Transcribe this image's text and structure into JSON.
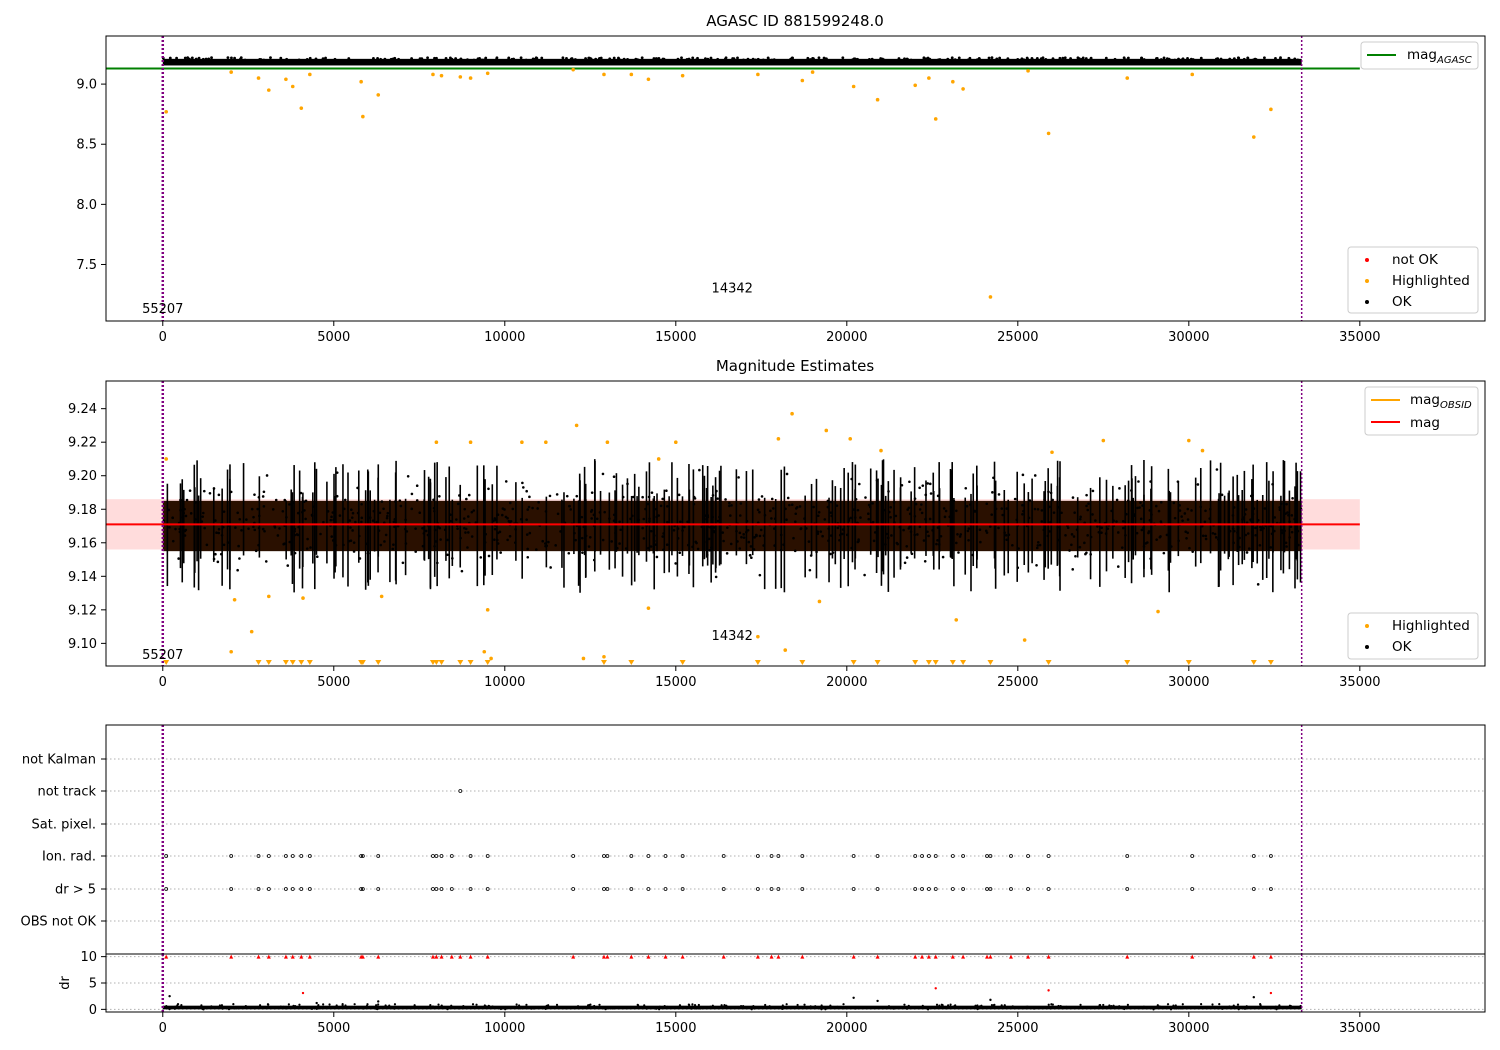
{
  "figure": {
    "background": "#ffffff"
  },
  "colors": {
    "ok": "#000000",
    "highlighted": "#ffa500",
    "not_ok": "#ff0000",
    "mag_agasc": "#008000",
    "mag_line": "#ff0000",
    "mag_band": "#ffc0c0",
    "dense_band": "#2a1000",
    "vline": "#800080"
  },
  "chart_data": [
    {
      "type": "scatter",
      "title": "AGASC ID 881599248.0",
      "xlim": [
        -1660,
        38660
      ],
      "ylim": [
        7.03,
        9.4
      ],
      "x_ticks": [
        0,
        5000,
        10000,
        15000,
        20000,
        25000,
        30000,
        35000
      ],
      "y_ticks": [
        7.5,
        8.0,
        8.5,
        9.0
      ],
      "y_tick_labels": [
        "7.5",
        "8.0",
        "8.5",
        "9.0"
      ],
      "x_tick_labels": [
        "0",
        "5000",
        "10000",
        "15000",
        "20000",
        "25000",
        "30000",
        "35000"
      ],
      "ok_band": {
        "x": [
          0,
          33300
        ],
        "y": [
          9.155,
          9.21
        ],
        "center": 9.18
      },
      "mag_agasc": 9.13,
      "vlines": [
        0,
        33300
      ],
      "annotations": [
        {
          "text": "55207",
          "x": 0,
          "y": 7.13
        },
        {
          "text": "14342",
          "x": 16650,
          "y": 7.3
        }
      ],
      "highlighted": [
        [
          100,
          8.77
        ],
        [
          2000,
          9.1
        ],
        [
          2800,
          9.05
        ],
        [
          3100,
          8.95
        ],
        [
          3600,
          9.04
        ],
        [
          3800,
          8.98
        ],
        [
          4050,
          8.8
        ],
        [
          4300,
          9.08
        ],
        [
          5800,
          9.02
        ],
        [
          5850,
          8.73
        ],
        [
          6300,
          8.91
        ],
        [
          7900,
          9.08
        ],
        [
          8150,
          9.07
        ],
        [
          8700,
          9.06
        ],
        [
          9000,
          9.05
        ],
        [
          9500,
          9.09
        ],
        [
          12000,
          9.12
        ],
        [
          12900,
          9.08
        ],
        [
          13700,
          9.08
        ],
        [
          14200,
          9.04
        ],
        [
          15200,
          9.07
        ],
        [
          17400,
          9.08
        ],
        [
          18700,
          9.03
        ],
        [
          19000,
          9.1
        ],
        [
          20200,
          8.98
        ],
        [
          20900,
          8.87
        ],
        [
          22000,
          8.99
        ],
        [
          22400,
          9.05
        ],
        [
          22600,
          8.71
        ],
        [
          23100,
          9.02
        ],
        [
          23400,
          8.96
        ],
        [
          24200,
          7.23
        ],
        [
          25300,
          9.11
        ],
        [
          25900,
          8.59
        ],
        [
          28200,
          9.05
        ],
        [
          30100,
          9.08
        ],
        [
          31900,
          8.56
        ],
        [
          32400,
          8.79
        ]
      ],
      "legends": [
        {
          "position": "top-right",
          "entries": [
            {
              "label": "mag",
              "sub": "AGASC",
              "style": "line",
              "color_key": "mag_agasc"
            }
          ]
        },
        {
          "position": "bottom-right",
          "entries": [
            {
              "label": "not OK",
              "style": "dot",
              "color_key": "not_ok"
            },
            {
              "label": "Highlighted",
              "style": "dot",
              "color_key": "highlighted"
            },
            {
              "label": "OK",
              "style": "dot",
              "color_key": "ok"
            }
          ]
        }
      ]
    },
    {
      "type": "scatter",
      "title": "Magnitude Estimates",
      "xlim": [
        -1660,
        38660
      ],
      "ylim": [
        9.0865,
        9.2565
      ],
      "x_ticks": [
        0,
        5000,
        10000,
        15000,
        20000,
        25000,
        30000,
        35000
      ],
      "x_tick_labels": [
        "0",
        "5000",
        "10000",
        "15000",
        "20000",
        "25000",
        "30000",
        "35000"
      ],
      "y_ticks": [
        9.1,
        9.12,
        9.14,
        9.16,
        9.18,
        9.2,
        9.22,
        9.24
      ],
      "y_tick_labels": [
        "9.10",
        "9.12",
        "9.14",
        "9.16",
        "9.18",
        "9.20",
        "9.22",
        "9.24"
      ],
      "mag": 9.171,
      "mag_band": [
        9.156,
        9.186
      ],
      "dense_band": [
        9.155,
        9.185
      ],
      "ok_spread": [
        9.13,
        9.21
      ],
      "vlines": [
        0,
        33300
      ],
      "annotations": [
        {
          "text": "55207",
          "x": 0,
          "y": 9.093
        },
        {
          "text": "14342",
          "x": 16650,
          "y": 9.1045
        }
      ],
      "highlighted": [
        [
          100,
          9.21
        ],
        [
          2000,
          9.095
        ],
        [
          2100,
          9.126
        ],
        [
          2600,
          9.107
        ],
        [
          3100,
          9.128
        ],
        [
          4100,
          9.127
        ],
        [
          6400,
          9.128
        ],
        [
          8000,
          9.22
        ],
        [
          9000,
          9.22
        ],
        [
          9400,
          9.095
        ],
        [
          9600,
          9.091
        ],
        [
          9500,
          9.12
        ],
        [
          10500,
          9.22
        ],
        [
          11200,
          9.22
        ],
        [
          12100,
          9.23
        ],
        [
          12300,
          9.091
        ],
        [
          12900,
          9.092
        ],
        [
          13000,
          9.22
        ],
        [
          14200,
          9.121
        ],
        [
          14500,
          9.21
        ],
        [
          15000,
          9.22
        ],
        [
          17400,
          9.104
        ],
        [
          18000,
          9.222
        ],
        [
          18400,
          9.237
        ],
        [
          18200,
          9.096
        ],
        [
          19200,
          9.125
        ],
        [
          19400,
          9.227
        ],
        [
          20100,
          9.222
        ],
        [
          21000,
          9.215
        ],
        [
          23200,
          9.114
        ],
        [
          25200,
          9.102
        ],
        [
          26000,
          9.214
        ],
        [
          27500,
          9.221
        ],
        [
          29100,
          9.119
        ],
        [
          30000,
          9.221
        ],
        [
          30400,
          9.215
        ]
      ],
      "highlighted_below": [
        100,
        2800,
        3100,
        3600,
        3800,
        4050,
        4300,
        5800,
        5850,
        6300,
        7900,
        8000,
        8150,
        8700,
        9000,
        9500,
        12900,
        13700,
        15200,
        17400,
        18700,
        20200,
        20900,
        22000,
        22400,
        22600,
        23100,
        23400,
        24200,
        25900,
        28200,
        30000,
        31900,
        32400
      ],
      "legends": [
        {
          "position": "top-right",
          "entries": [
            {
              "label": "mag",
              "sub": "OBSID",
              "style": "line",
              "color_key": "highlighted"
            },
            {
              "label": "mag",
              "style": "line",
              "color_key": "mag_line"
            }
          ]
        },
        {
          "position": "bottom-right",
          "entries": [
            {
              "label": "Highlighted",
              "style": "dot",
              "color_key": "highlighted"
            },
            {
              "label": "OK",
              "style": "dot",
              "color_key": "ok"
            }
          ]
        }
      ]
    },
    {
      "type": "scatter",
      "xlim": [
        -1660,
        38660
      ],
      "categories": [
        "not Kalman",
        "not track",
        "Sat. pixel.",
        "Ion. rad.",
        "dr > 5",
        "OBS not OK"
      ],
      "x_ticks": [
        0,
        5000,
        10000,
        15000,
        20000,
        25000,
        30000,
        35000
      ],
      "x_tick_labels": [
        "0",
        "5000",
        "10000",
        "15000",
        "20000",
        "25000",
        "30000",
        "35000"
      ],
      "vlines": [
        0,
        33300
      ],
      "flag_points": {
        "not track": [
          8700
        ],
        "Ion. rad.": [
          100,
          2000,
          2800,
          3100,
          3600,
          3800,
          4050,
          4300,
          5800,
          5850,
          6300,
          7900,
          8000,
          8150,
          8450,
          9000,
          9500,
          12000,
          12900,
          13000,
          13700,
          14200,
          14700,
          15200,
          16400,
          17400,
          17800,
          18000,
          18700,
          20200,
          20900,
          22000,
          22200,
          22400,
          22600,
          23100,
          23400,
          24100,
          24200,
          24800,
          25300,
          25900,
          28200,
          30100,
          31900,
          32400
        ],
        "dr > 5": [
          100,
          2000,
          2800,
          3100,
          3600,
          3800,
          4050,
          4300,
          5800,
          5850,
          6300,
          7900,
          8000,
          8150,
          8450,
          9000,
          9500,
          12000,
          12900,
          13000,
          13700,
          14200,
          14700,
          15200,
          16400,
          17400,
          17800,
          18000,
          18700,
          20200,
          20900,
          22000,
          22200,
          22400,
          22600,
          23100,
          23400,
          24100,
          24200,
          24800,
          25300,
          25900,
          28200,
          30100,
          31900,
          32400
        ]
      }
    },
    {
      "type": "scatter",
      "xlim": [
        -1660,
        38660
      ],
      "ylim": [
        -0.5,
        10.5
      ],
      "ylabel": "dr",
      "y_ticks": [
        0,
        5,
        10
      ],
      "y_tick_labels": [
        "0",
        "5",
        "10"
      ],
      "x_ticks": [
        0,
        5000,
        10000,
        15000,
        20000,
        25000,
        30000,
        35000
      ],
      "x_tick_labels": [
        "0",
        "5000",
        "10000",
        "15000",
        "20000",
        "25000",
        "30000",
        "35000"
      ],
      "vlines": [
        0,
        33300
      ],
      "ok_band": [
        0,
        0.7
      ],
      "clipped_not_ok": [
        100,
        2000,
        2800,
        3100,
        3600,
        3800,
        4050,
        4300,
        5800,
        5850,
        6300,
        7900,
        8000,
        8150,
        8450,
        8700,
        9000,
        9500,
        12000,
        12900,
        13000,
        13700,
        14200,
        14700,
        15200,
        16400,
        17400,
        17800,
        18000,
        18700,
        20200,
        20900,
        22000,
        22200,
        22400,
        22600,
        23100,
        23400,
        24100,
        24200,
        24800,
        25300,
        25900,
        28200,
        30100,
        31900,
        32400
      ],
      "not_ok": [
        [
          4100,
          3.1
        ],
        [
          22600,
          4.0
        ],
        [
          25900,
          3.6
        ],
        [
          32400,
          3.1
        ]
      ],
      "ok_outliers": [
        [
          200,
          2.5
        ],
        [
          4500,
          1.2
        ],
        [
          6300,
          1.5
        ],
        [
          20200,
          2.2
        ],
        [
          20900,
          1.6
        ],
        [
          24200,
          1.8
        ],
        [
          31900,
          2.3
        ]
      ]
    }
  ]
}
